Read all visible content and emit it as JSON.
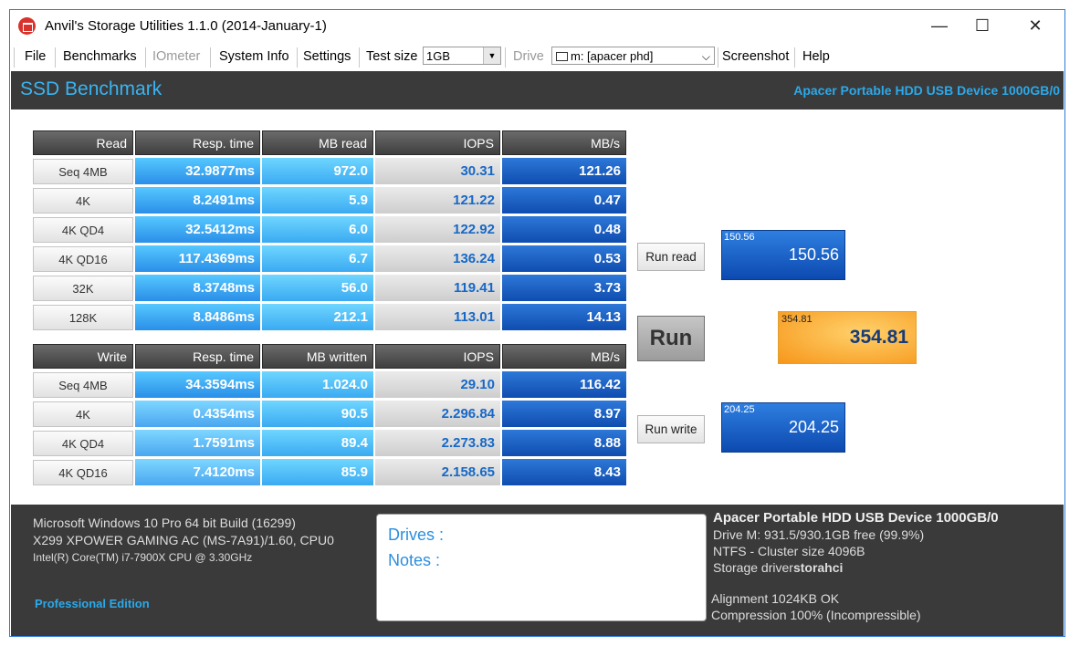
{
  "window": {
    "title": "Anvil's Storage Utilities 1.1.0 (2014-January-1)",
    "controls": {
      "minimize": "—",
      "maximize": "☐",
      "close": "✕"
    }
  },
  "menu": {
    "file": "File",
    "benchmarks": "Benchmarks",
    "iometer": "IOmeter",
    "system_info": "System Info",
    "settings": "Settings",
    "test_size_label": "Test size",
    "test_size_value": "1GB",
    "drive_label": "Drive",
    "drive_value": "m: [apacer phd]",
    "screenshot": "Screenshot",
    "help": "Help"
  },
  "header": {
    "title": "SSD Benchmark",
    "device": "Apacer Portable HDD USB Device 1000GB/0"
  },
  "read_table": {
    "headers": [
      "Read",
      "Resp. time",
      "MB read",
      "IOPS",
      "MB/s"
    ],
    "rows": [
      {
        "label": "Seq 4MB",
        "resp": "32.9877ms",
        "mb": "972.0",
        "iops": "30.31",
        "mbs": "121.26"
      },
      {
        "label": "4K",
        "resp": "8.2491ms",
        "mb": "5.9",
        "iops": "121.22",
        "mbs": "0.47"
      },
      {
        "label": "4K QD4",
        "resp": "32.5412ms",
        "mb": "6.0",
        "iops": "122.92",
        "mbs": "0.48"
      },
      {
        "label": "4K QD16",
        "resp": "117.4369ms",
        "mb": "6.7",
        "iops": "136.24",
        "mbs": "0.53"
      },
      {
        "label": "32K",
        "resp": "8.3748ms",
        "mb": "56.0",
        "iops": "119.41",
        "mbs": "3.73"
      },
      {
        "label": "128K",
        "resp": "8.8486ms",
        "mb": "212.1",
        "iops": "113.01",
        "mbs": "14.13"
      }
    ]
  },
  "write_table": {
    "headers": [
      "Write",
      "Resp. time",
      "MB written",
      "IOPS",
      "MB/s"
    ],
    "rows": [
      {
        "label": "Seq 4MB",
        "resp": "34.3594ms",
        "mb": "1.024.0",
        "iops": "29.10",
        "mbs": "116.42"
      },
      {
        "label": "4K",
        "resp": "0.4354ms",
        "mb": "90.5",
        "iops": "2.296.84",
        "mbs": "8.97"
      },
      {
        "label": "4K QD4",
        "resp": "1.7591ms",
        "mb": "89.4",
        "iops": "2.273.83",
        "mbs": "8.88"
      },
      {
        "label": "4K QD16",
        "resp": "7.4120ms",
        "mb": "85.9",
        "iops": "2.158.65",
        "mbs": "8.43"
      }
    ]
  },
  "actions": {
    "run_read": "Run read",
    "run": "Run",
    "run_write": "Run write"
  },
  "scores": {
    "read": {
      "small": "150.56",
      "big": "150.56"
    },
    "total": {
      "small": "354.81",
      "big": "354.81"
    },
    "write": {
      "small": "204.25",
      "big": "204.25"
    }
  },
  "footer": {
    "os": "Microsoft Windows 10 Pro 64 bit Build (16299)",
    "board": "X299 XPOWER GAMING AC (MS-7A91)/1.60, CPU0",
    "cpu": "Intel(R) Core(TM) i7-7900X CPU @ 3.30GHz",
    "edition": "Professional Edition",
    "drives_label": "Drives :",
    "notes_label": "Notes :",
    "device": "Apacer Portable HDD USB Device 1000GB/0",
    "drive_info": "Drive M: 931.5/930.1GB free (99.9%)",
    "fs_info": "NTFS - Cluster size 4096B",
    "storage_driver_label": "Storage driver",
    "storage_driver_value": "storahci",
    "alignment": "Alignment 1024KB OK",
    "compression": "Compression 100% (Incompressible)"
  }
}
